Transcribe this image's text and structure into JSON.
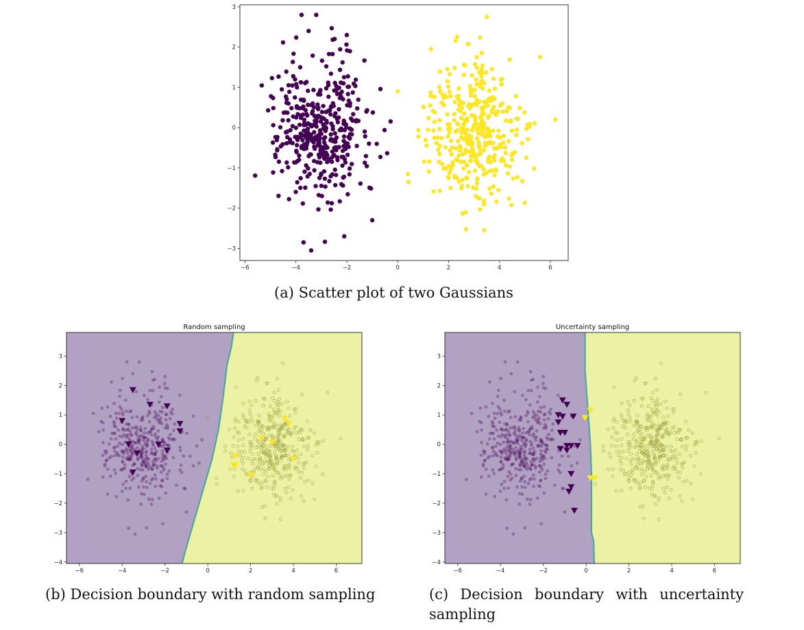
{
  "captions": {
    "a": "(a) Scatter plot of two Gaussians",
    "b": "(b) Decision boundary with random sampling",
    "c": "(c) Decision boundary with uncertainty sampling"
  },
  "colors": {
    "purple": "#440154",
    "yellow": "#fde725",
    "region_purple": "#b1a1c3",
    "region_yellow": "#ebf2a4",
    "boundary": "#4fa79c"
  },
  "chart_data": [
    {
      "type": "scatter",
      "panel": "a",
      "title": "",
      "xlim": [
        -6.2,
        6.7
      ],
      "ylim": [
        -3.3,
        3.05
      ],
      "xticks": [
        -6,
        -4,
        -2,
        0,
        2,
        4,
        6
      ],
      "yticks": [
        -3,
        -2,
        -1,
        0,
        1,
        2,
        3
      ],
      "series": [
        {
          "color": "#440154",
          "center": [
            -3,
            0
          ],
          "std": 0.9,
          "n": 400,
          "note_outliers": [
            [
              -3.4,
              -3.05
            ],
            [
              -3.7,
              -2.85
            ],
            [
              -2.1,
              -2.7
            ],
            [
              -1.0,
              -2.3
            ],
            [
              -3.5,
              2.4
            ],
            [
              -2.0,
              2.3
            ]
          ]
        },
        {
          "color": "#fde725",
          "center": [
            3,
            0
          ],
          "std": 0.9,
          "n": 400,
          "note_outliers": [
            [
              3.5,
              2.75
            ],
            [
              6.2,
              0.2
            ],
            [
              3.4,
              -2.55
            ],
            [
              0,
              0.9
            ],
            [
              0.4,
              -1.15
            ],
            [
              5.6,
              1.75
            ]
          ]
        }
      ]
    },
    {
      "type": "scatter",
      "panel": "b",
      "title": "Random sampling",
      "xlim": [
        -6.6,
        7.2
      ],
      "ylim": [
        -4.05,
        3.8
      ],
      "xticks": [
        -6,
        -4,
        -2,
        0,
        2,
        4,
        6
      ],
      "yticks": [
        -4,
        -3,
        -2,
        -1,
        0,
        1,
        2,
        3
      ],
      "boundary": [
        [
          -1.2,
          -4.05
        ],
        [
          -1.0,
          -3.5
        ],
        [
          -0.6,
          -2.5
        ],
        [
          -0.2,
          -1.5
        ],
        [
          0.2,
          -0.5
        ],
        [
          0.5,
          0.5
        ],
        [
          0.7,
          1.5
        ],
        [
          0.9,
          2.7
        ],
        [
          1.1,
          3.3
        ],
        [
          1.2,
          3.8
        ]
      ],
      "labeled_purple": [
        [
          -3.5,
          1.85
        ],
        [
          -2.7,
          1.35
        ],
        [
          -1.9,
          1.3
        ],
        [
          -4.0,
          0.8
        ],
        [
          -1.3,
          0.7
        ],
        [
          -1.3,
          0.45
        ],
        [
          -3.7,
          0.0
        ],
        [
          -2.3,
          0.0
        ],
        [
          -3.3,
          -0.3
        ],
        [
          -1.9,
          -0.2
        ],
        [
          -3.5,
          -0.95
        ]
      ],
      "labeled_yellow": [
        [
          3.6,
          0.85
        ],
        [
          3.8,
          0.7
        ],
        [
          2.5,
          0.2
        ],
        [
          3.0,
          0.05
        ],
        [
          1.3,
          -0.4
        ],
        [
          1.3,
          -0.7
        ],
        [
          1.2,
          -0.7
        ],
        [
          4.0,
          -0.5
        ],
        [
          2.0,
          -1.05
        ]
      ]
    },
    {
      "type": "scatter",
      "panel": "c",
      "title": "Uncertainty sampling",
      "xlim": [
        -6.6,
        7.2
      ],
      "ylim": [
        -4.05,
        3.8
      ],
      "xticks": [
        -6,
        -4,
        -2,
        0,
        2,
        4,
        6
      ],
      "yticks": [
        -4,
        -3,
        -2,
        -1,
        0,
        1,
        2,
        3
      ],
      "boundary": [
        [
          0.38,
          -4.05
        ],
        [
          0.35,
          -3.3
        ],
        [
          0.25,
          -3.0
        ],
        [
          0.25,
          -1.0
        ],
        [
          0.2,
          0.0
        ],
        [
          0.1,
          1.0
        ],
        [
          -0.05,
          2.5
        ],
        [
          -0.05,
          3.8
        ]
      ],
      "labeled_purple": [
        [
          -1.1,
          1.5
        ],
        [
          -0.9,
          1.35
        ],
        [
          -1.3,
          1.0
        ],
        [
          -1.1,
          0.95
        ],
        [
          -0.6,
          0.95
        ],
        [
          -1.3,
          0.75
        ],
        [
          -1.2,
          0.4
        ],
        [
          -1.0,
          0.4
        ],
        [
          -0.9,
          -0.05
        ],
        [
          -0.7,
          -0.05
        ],
        [
          -0.4,
          -0.05
        ],
        [
          -1.2,
          -0.15
        ],
        [
          -0.9,
          -0.2
        ],
        [
          -0.7,
          -1.0
        ],
        [
          -0.7,
          -1.45
        ],
        [
          -0.8,
          -1.6
        ],
        [
          -0.55,
          -2.25
        ]
      ],
      "labeled_yellow": [
        [
          0.2,
          1.15
        ],
        [
          -0.05,
          0.9
        ],
        [
          0.2,
          -1.15
        ],
        [
          0.4,
          -1.15
        ]
      ]
    }
  ]
}
